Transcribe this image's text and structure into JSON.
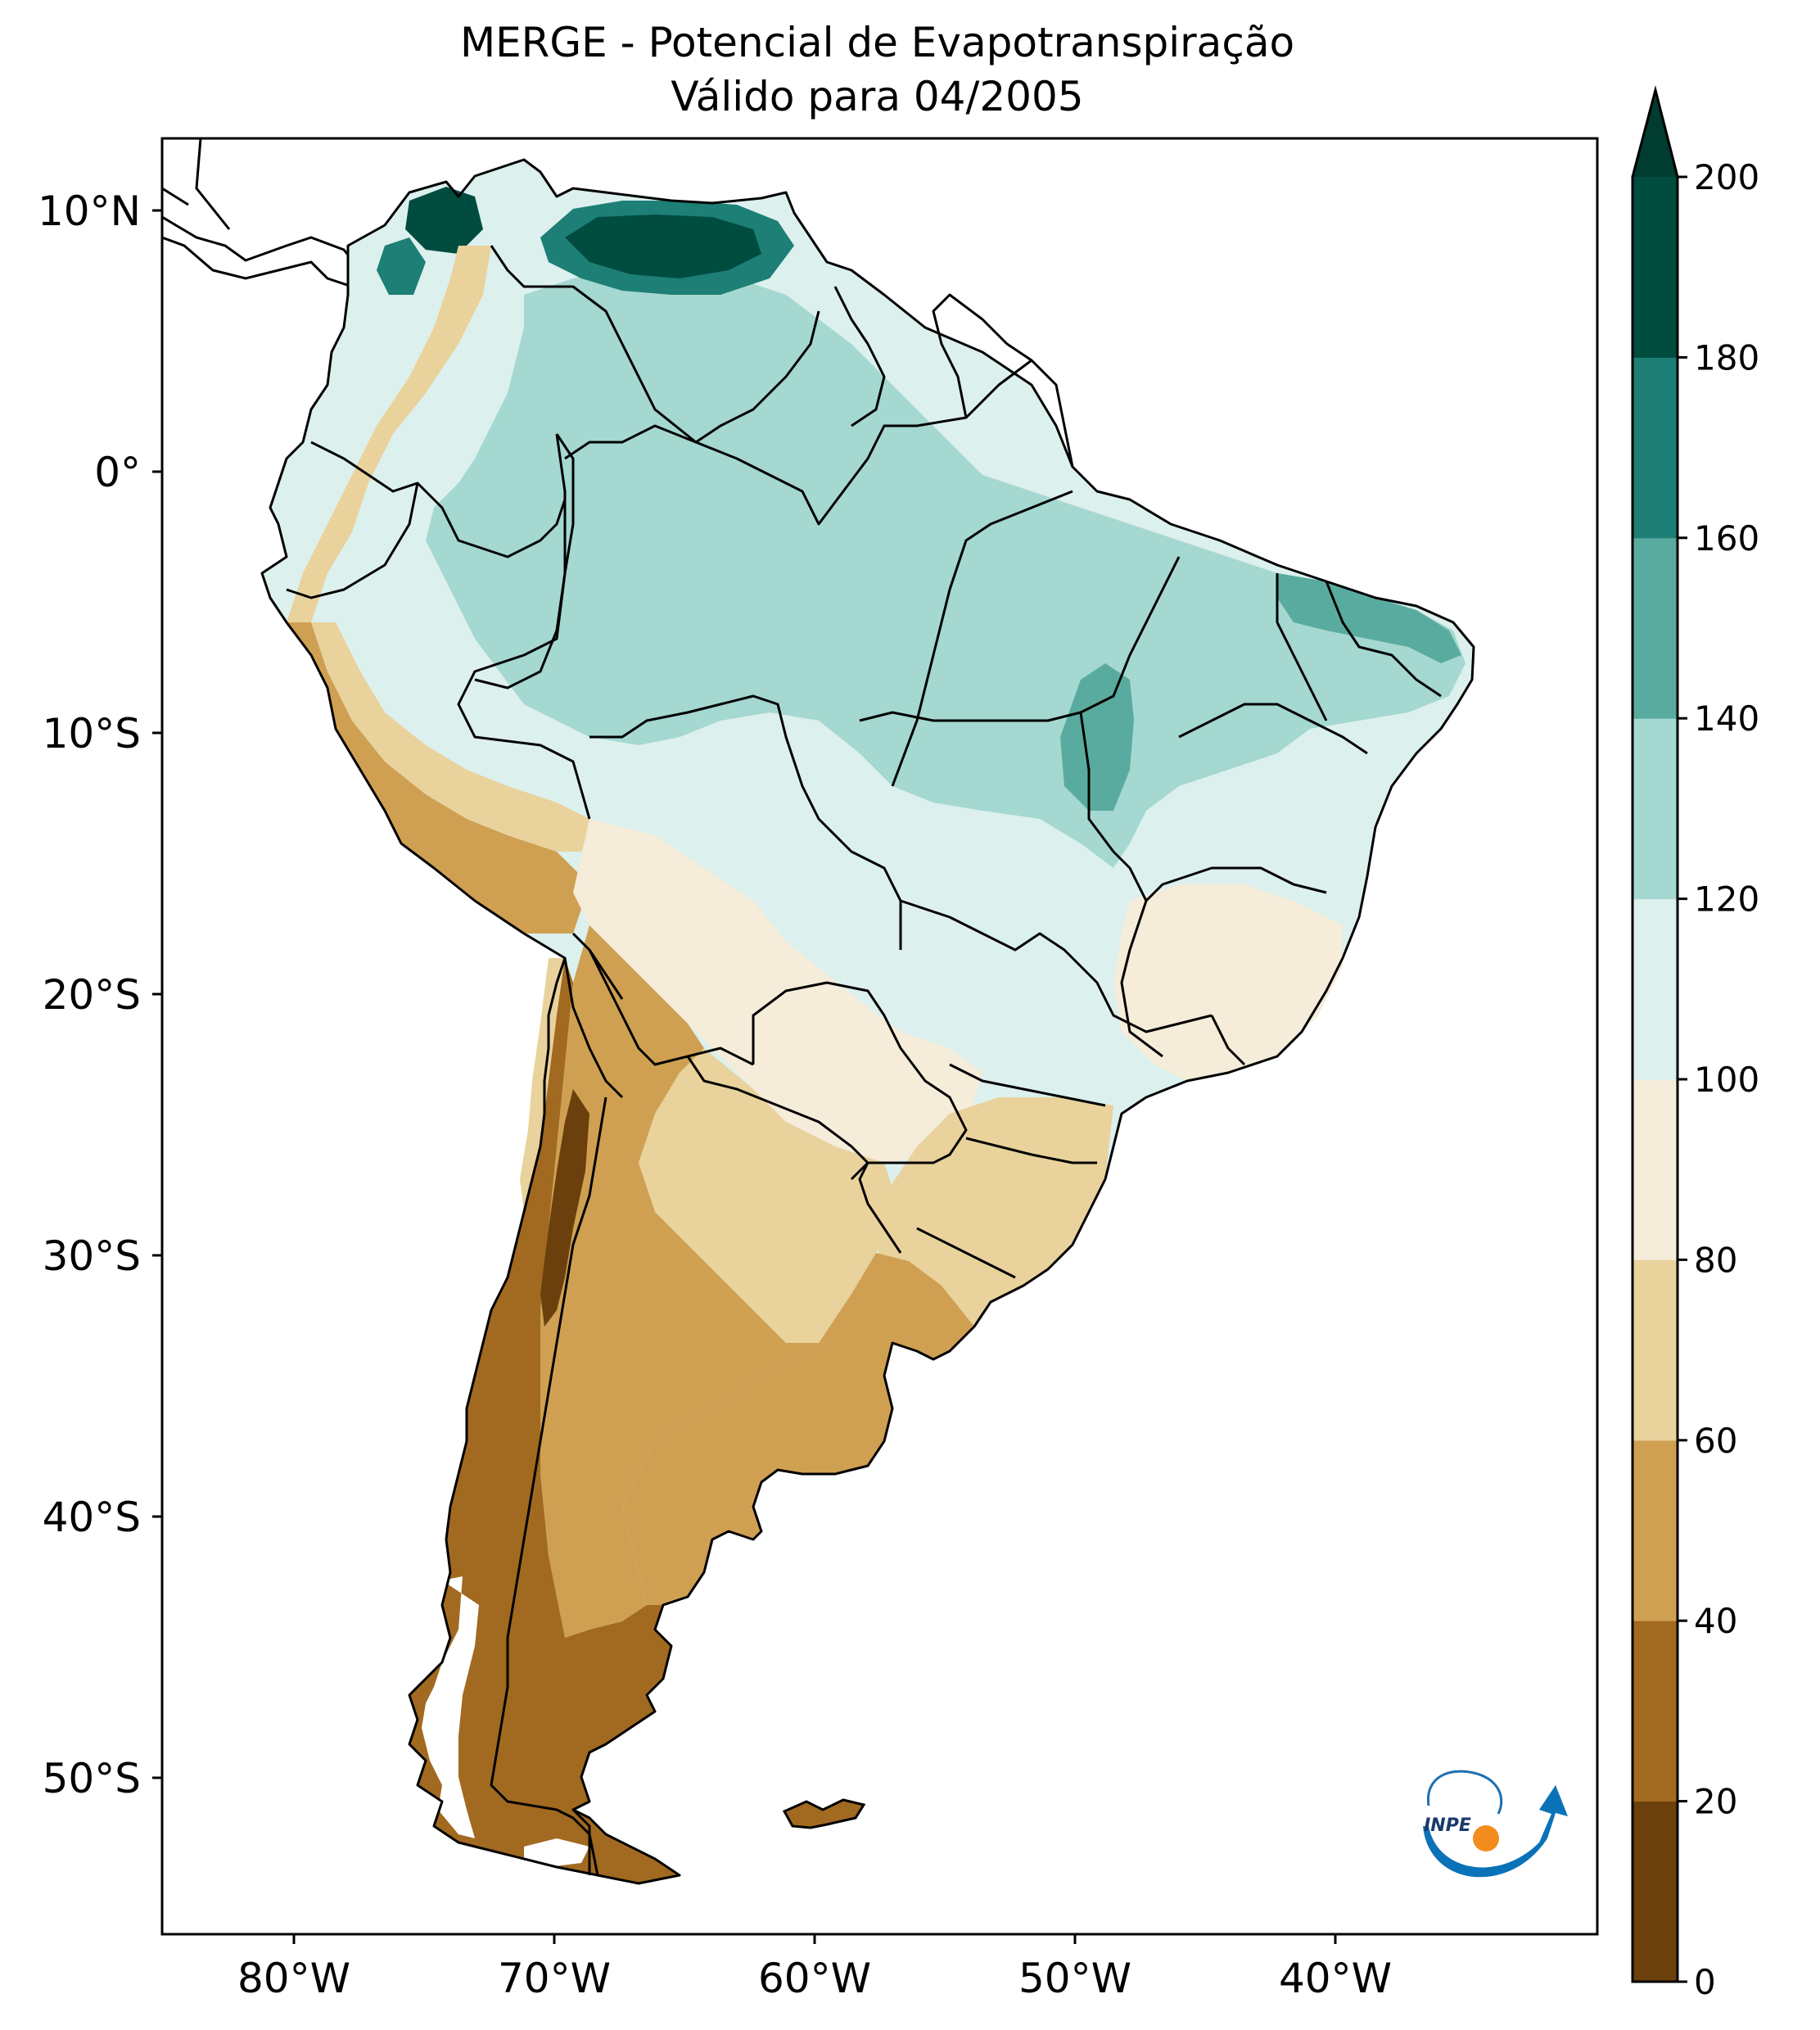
{
  "title": {
    "line1": "MERGE - Potencial de Evapotranspiração",
    "line2": "Válido para 04/2005"
  },
  "map": {
    "lat_labels": [
      "10°N",
      "0°",
      "10°S",
      "20°S",
      "30°S",
      "40°S",
      "50°S"
    ],
    "lon_labels": [
      "80°W",
      "70°W",
      "60°W",
      "50°W",
      "40°W"
    ],
    "logo_text": "INPE"
  },
  "colorbar": {
    "ticks": [
      "0",
      "20",
      "40",
      "60",
      "80",
      "100",
      "120",
      "140",
      "160",
      "180",
      "200"
    ],
    "extend": "max",
    "colors": [
      "#6b400d",
      "#a16a20",
      "#cfa052",
      "#e9d29c",
      "#f5ecd9",
      "#dcf0ee",
      "#a4d8d0",
      "#5aab9f",
      "#1d7f75",
      "#004d40"
    ],
    "extend_color": "#003c30"
  },
  "palette": {
    "ocean": "#ffffff",
    "border": "#000000"
  }
}
